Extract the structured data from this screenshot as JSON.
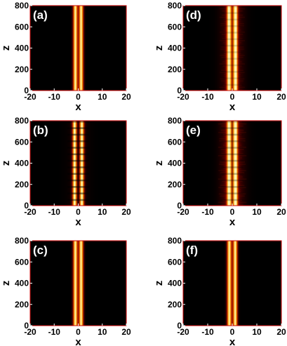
{
  "chart_data": [
    {
      "type": "heatmap",
      "panel": "(a)",
      "xlabel": "x",
      "ylabel": "z",
      "xlim": [
        -20,
        20
      ],
      "ylim": [
        0,
        800
      ],
      "xticks": [
        "-20",
        "-10",
        "0",
        "10",
        "20"
      ],
      "yticks": [
        "0",
        "200",
        "400",
        "600",
        "800"
      ],
      "profile": "two-stripe",
      "stripe_centers": [
        -1.2,
        1.2
      ],
      "stripe_width": 0.9,
      "modulation": 0.0,
      "halo": 0.0
    },
    {
      "type": "heatmap",
      "panel": "(b)",
      "xlabel": "x",
      "ylabel": "z",
      "xlim": [
        -20,
        20
      ],
      "ylim": [
        0,
        800
      ],
      "xticks": [
        "-20",
        "-10",
        "0",
        "10",
        "20"
      ],
      "yticks": [
        "0",
        "200",
        "400",
        "600",
        "800"
      ],
      "profile": "two-stripe-oscillating",
      "stripe_centers": [
        -1.5,
        1.5
      ],
      "stripe_width": 0.9,
      "modulation": 0.85,
      "halo": 0.15
    },
    {
      "type": "heatmap",
      "panel": "(c)",
      "xlabel": "x",
      "ylabel": "z",
      "xlim": [
        -20,
        20
      ],
      "ylim": [
        0,
        800
      ],
      "xticks": [
        "-20",
        "-10",
        "0",
        "10",
        "20"
      ],
      "yticks": [
        "0",
        "200",
        "400",
        "600",
        "800"
      ],
      "profile": "two-stripe",
      "stripe_centers": [
        -1.2,
        1.2
      ],
      "stripe_width": 0.9,
      "modulation": 0.0,
      "halo": 0.0
    },
    {
      "type": "heatmap",
      "panel": "(d)",
      "xlabel": "x",
      "ylabel": "z",
      "xlim": [
        -20,
        20
      ],
      "ylim": [
        0,
        800
      ],
      "xticks": [
        "-20",
        "-10",
        "0",
        "10",
        "20"
      ],
      "yticks": [
        "0",
        "200",
        "400",
        "600",
        "800"
      ],
      "profile": "two-stripe-radiating",
      "stripe_centers": [
        -1.3,
        1.3
      ],
      "stripe_width": 0.9,
      "modulation": 0.25,
      "halo": 0.55
    },
    {
      "type": "heatmap",
      "panel": "(e)",
      "xlabel": "x",
      "ylabel": "z",
      "xlim": [
        -20,
        20
      ],
      "ylim": [
        0,
        800
      ],
      "xticks": [
        "-20",
        "-10",
        "0",
        "10",
        "20"
      ],
      "yticks": [
        "0",
        "200",
        "400",
        "600",
        "800"
      ],
      "profile": "two-stripe-radiating",
      "stripe_centers": [
        -1.3,
        1.3
      ],
      "stripe_width": 0.9,
      "modulation": 0.45,
      "halo": 0.7
    },
    {
      "type": "heatmap",
      "panel": "(f)",
      "xlabel": "x",
      "ylabel": "z",
      "xlim": [
        -20,
        20
      ],
      "ylim": [
        0,
        800
      ],
      "xticks": [
        "-20",
        "-10",
        "0",
        "10",
        "20"
      ],
      "yticks": [
        "0",
        "200",
        "400",
        "600",
        "800"
      ],
      "profile": "two-stripe",
      "stripe_centers": [
        -1.2,
        1.2
      ],
      "stripe_width": 0.9,
      "modulation": 0.0,
      "halo": 0.0
    }
  ],
  "colors": {
    "background": "#000000",
    "colormap": [
      "#000000",
      "#5a0000",
      "#b01800",
      "#e85a00",
      "#ffb000",
      "#fff5b0"
    ],
    "panel_label": "#ffffff",
    "frame": "#cc0000"
  }
}
